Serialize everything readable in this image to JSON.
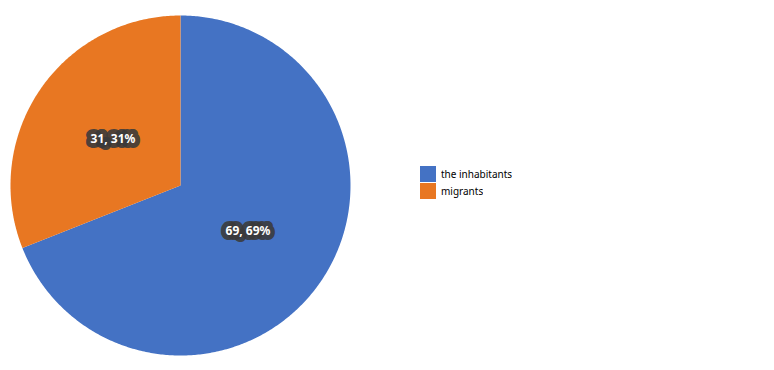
{
  "chart_data": {
    "type": "pie",
    "categories": [
      "the inhabitants",
      "migrants"
    ],
    "values": [
      69,
      31
    ],
    "colors": [
      "#4472C4",
      "#E87722"
    ],
    "data_labels": true,
    "value_labels": [
      "69, 69%",
      "31, 31%"
    ],
    "legend": "right"
  }
}
